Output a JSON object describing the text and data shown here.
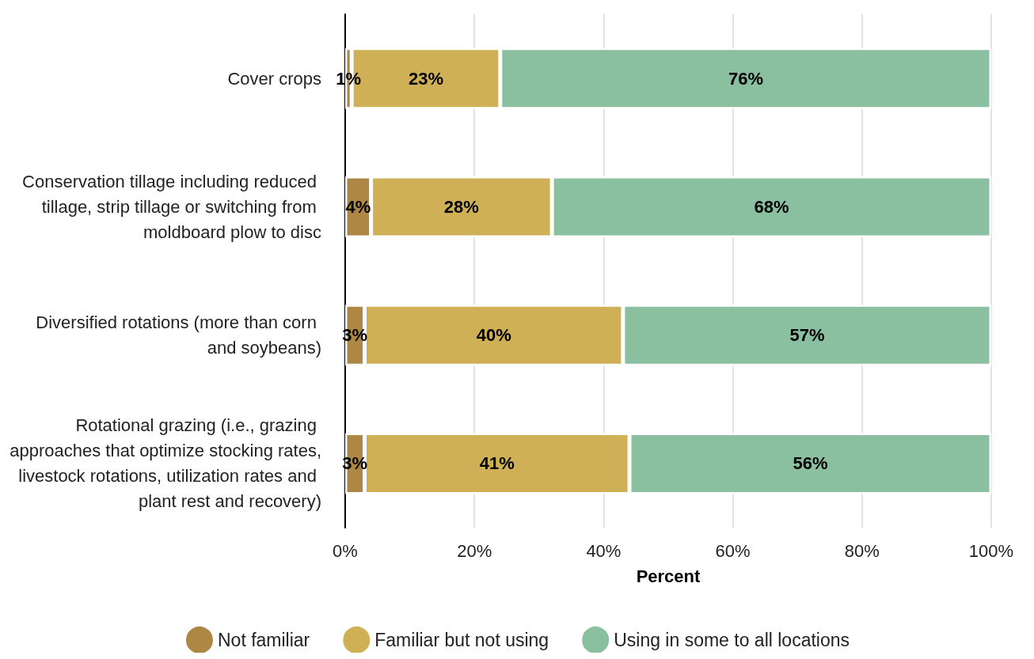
{
  "chart_data": {
    "type": "bar",
    "orientation": "horizontal",
    "stacked": true,
    "xlabel": "Percent",
    "categories": [
      "Cover crops",
      "Conservation tillage including reduced tillage, strip tillage or switching from moldboard plow to disc",
      "Diversified rotations (more than corn and soybeans)",
      "Rotational grazing (i.e., grazing approaches that optimize stocking rates, livestock rotations, utilization rates and plant rest and recovery)"
    ],
    "series": [
      {
        "name": "Not familiar",
        "color": "#ad8743",
        "values": [
          1,
          4,
          3,
          3
        ],
        "value_labels": [
          "1%",
          "4%",
          "3%",
          "3%"
        ]
      },
      {
        "name": "Familiar but not using",
        "color": "#cfb056",
        "values": [
          23,
          28,
          40,
          41
        ],
        "value_labels": [
          "23%",
          "28%",
          "40%",
          "41%"
        ]
      },
      {
        "name": "Using in some to all locations",
        "color": "#8abf9f",
        "values": [
          76,
          68,
          57,
          56
        ],
        "value_labels": [
          "76%",
          "68%",
          "57%",
          "56%"
        ]
      }
    ],
    "xlim": [
      0,
      100
    ],
    "xticks": [
      {
        "value": 0,
        "label": "0%"
      },
      {
        "value": 20,
        "label": "20%"
      },
      {
        "value": 40,
        "label": "40%"
      },
      {
        "value": 60,
        "label": "60%"
      },
      {
        "value": 80,
        "label": "80%"
      },
      {
        "value": 100,
        "label": "100%"
      }
    ],
    "grid": "x",
    "legend": "bottom"
  }
}
